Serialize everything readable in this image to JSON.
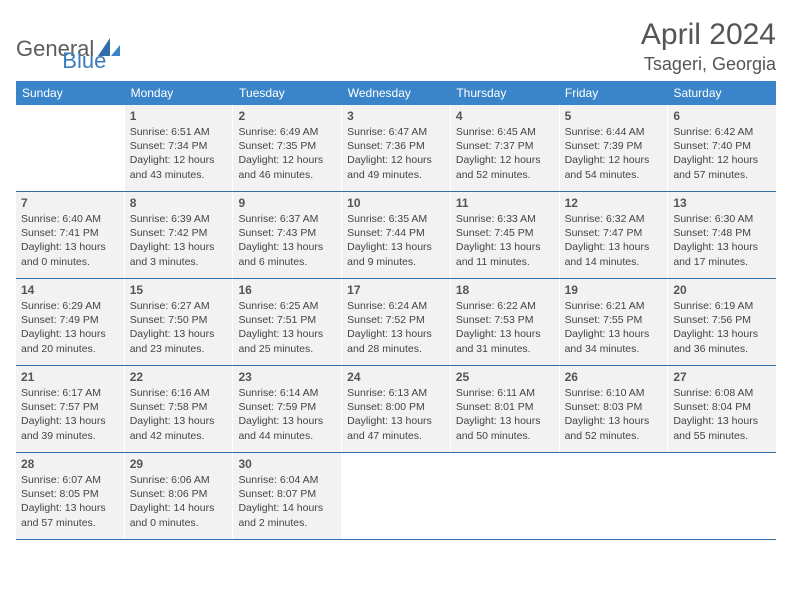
{
  "logo": {
    "text1": "General",
    "text2": "Blue"
  },
  "title": "April 2024",
  "location": "Tsageri, Georgia",
  "colors": {
    "header_bg": "#3a85c9",
    "header_fg": "#ffffff",
    "cell_bg": "#f2f2f2",
    "border": "#2f6ea8",
    "title_color": "#555555",
    "text_color": "#444444",
    "logo_gray": "#5c5c5c",
    "logo_blue": "#3b7dbf"
  },
  "day_headers": [
    "Sunday",
    "Monday",
    "Tuesday",
    "Wednesday",
    "Thursday",
    "Friday",
    "Saturday"
  ],
  "weeks": [
    [
      null,
      {
        "n": "1",
        "sr": "Sunrise: 6:51 AM",
        "ss": "Sunset: 7:34 PM",
        "d1": "Daylight: 12 hours",
        "d2": "and 43 minutes."
      },
      {
        "n": "2",
        "sr": "Sunrise: 6:49 AM",
        "ss": "Sunset: 7:35 PM",
        "d1": "Daylight: 12 hours",
        "d2": "and 46 minutes."
      },
      {
        "n": "3",
        "sr": "Sunrise: 6:47 AM",
        "ss": "Sunset: 7:36 PM",
        "d1": "Daylight: 12 hours",
        "d2": "and 49 minutes."
      },
      {
        "n": "4",
        "sr": "Sunrise: 6:45 AM",
        "ss": "Sunset: 7:37 PM",
        "d1": "Daylight: 12 hours",
        "d2": "and 52 minutes."
      },
      {
        "n": "5",
        "sr": "Sunrise: 6:44 AM",
        "ss": "Sunset: 7:39 PM",
        "d1": "Daylight: 12 hours",
        "d2": "and 54 minutes."
      },
      {
        "n": "6",
        "sr": "Sunrise: 6:42 AM",
        "ss": "Sunset: 7:40 PM",
        "d1": "Daylight: 12 hours",
        "d2": "and 57 minutes."
      }
    ],
    [
      {
        "n": "7",
        "sr": "Sunrise: 6:40 AM",
        "ss": "Sunset: 7:41 PM",
        "d1": "Daylight: 13 hours",
        "d2": "and 0 minutes."
      },
      {
        "n": "8",
        "sr": "Sunrise: 6:39 AM",
        "ss": "Sunset: 7:42 PM",
        "d1": "Daylight: 13 hours",
        "d2": "and 3 minutes."
      },
      {
        "n": "9",
        "sr": "Sunrise: 6:37 AM",
        "ss": "Sunset: 7:43 PM",
        "d1": "Daylight: 13 hours",
        "d2": "and 6 minutes."
      },
      {
        "n": "10",
        "sr": "Sunrise: 6:35 AM",
        "ss": "Sunset: 7:44 PM",
        "d1": "Daylight: 13 hours",
        "d2": "and 9 minutes."
      },
      {
        "n": "11",
        "sr": "Sunrise: 6:33 AM",
        "ss": "Sunset: 7:45 PM",
        "d1": "Daylight: 13 hours",
        "d2": "and 11 minutes."
      },
      {
        "n": "12",
        "sr": "Sunrise: 6:32 AM",
        "ss": "Sunset: 7:47 PM",
        "d1": "Daylight: 13 hours",
        "d2": "and 14 minutes."
      },
      {
        "n": "13",
        "sr": "Sunrise: 6:30 AM",
        "ss": "Sunset: 7:48 PM",
        "d1": "Daylight: 13 hours",
        "d2": "and 17 minutes."
      }
    ],
    [
      {
        "n": "14",
        "sr": "Sunrise: 6:29 AM",
        "ss": "Sunset: 7:49 PM",
        "d1": "Daylight: 13 hours",
        "d2": "and 20 minutes."
      },
      {
        "n": "15",
        "sr": "Sunrise: 6:27 AM",
        "ss": "Sunset: 7:50 PM",
        "d1": "Daylight: 13 hours",
        "d2": "and 23 minutes."
      },
      {
        "n": "16",
        "sr": "Sunrise: 6:25 AM",
        "ss": "Sunset: 7:51 PM",
        "d1": "Daylight: 13 hours",
        "d2": "and 25 minutes."
      },
      {
        "n": "17",
        "sr": "Sunrise: 6:24 AM",
        "ss": "Sunset: 7:52 PM",
        "d1": "Daylight: 13 hours",
        "d2": "and 28 minutes."
      },
      {
        "n": "18",
        "sr": "Sunrise: 6:22 AM",
        "ss": "Sunset: 7:53 PM",
        "d1": "Daylight: 13 hours",
        "d2": "and 31 minutes."
      },
      {
        "n": "19",
        "sr": "Sunrise: 6:21 AM",
        "ss": "Sunset: 7:55 PM",
        "d1": "Daylight: 13 hours",
        "d2": "and 34 minutes."
      },
      {
        "n": "20",
        "sr": "Sunrise: 6:19 AM",
        "ss": "Sunset: 7:56 PM",
        "d1": "Daylight: 13 hours",
        "d2": "and 36 minutes."
      }
    ],
    [
      {
        "n": "21",
        "sr": "Sunrise: 6:17 AM",
        "ss": "Sunset: 7:57 PM",
        "d1": "Daylight: 13 hours",
        "d2": "and 39 minutes."
      },
      {
        "n": "22",
        "sr": "Sunrise: 6:16 AM",
        "ss": "Sunset: 7:58 PM",
        "d1": "Daylight: 13 hours",
        "d2": "and 42 minutes."
      },
      {
        "n": "23",
        "sr": "Sunrise: 6:14 AM",
        "ss": "Sunset: 7:59 PM",
        "d1": "Daylight: 13 hours",
        "d2": "and 44 minutes."
      },
      {
        "n": "24",
        "sr": "Sunrise: 6:13 AM",
        "ss": "Sunset: 8:00 PM",
        "d1": "Daylight: 13 hours",
        "d2": "and 47 minutes."
      },
      {
        "n": "25",
        "sr": "Sunrise: 6:11 AM",
        "ss": "Sunset: 8:01 PM",
        "d1": "Daylight: 13 hours",
        "d2": "and 50 minutes."
      },
      {
        "n": "26",
        "sr": "Sunrise: 6:10 AM",
        "ss": "Sunset: 8:03 PM",
        "d1": "Daylight: 13 hours",
        "d2": "and 52 minutes."
      },
      {
        "n": "27",
        "sr": "Sunrise: 6:08 AM",
        "ss": "Sunset: 8:04 PM",
        "d1": "Daylight: 13 hours",
        "d2": "and 55 minutes."
      }
    ],
    [
      {
        "n": "28",
        "sr": "Sunrise: 6:07 AM",
        "ss": "Sunset: 8:05 PM",
        "d1": "Daylight: 13 hours",
        "d2": "and 57 minutes."
      },
      {
        "n": "29",
        "sr": "Sunrise: 6:06 AM",
        "ss": "Sunset: 8:06 PM",
        "d1": "Daylight: 14 hours",
        "d2": "and 0 minutes."
      },
      {
        "n": "30",
        "sr": "Sunrise: 6:04 AM",
        "ss": "Sunset: 8:07 PM",
        "d1": "Daylight: 14 hours",
        "d2": "and 2 minutes."
      },
      null,
      null,
      null,
      null
    ]
  ]
}
